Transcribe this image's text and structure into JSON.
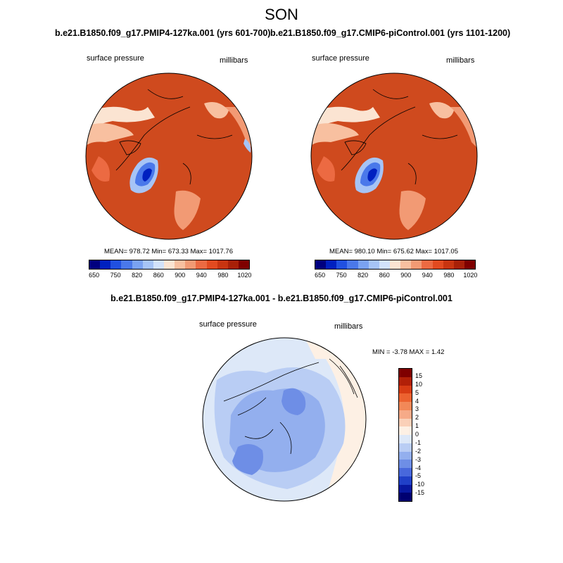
{
  "page_title": "SON",
  "panels": [
    {
      "case_title": "b.e21.B1850.f09_g17.PMIP4-127ka.001 (yrs 601-700)",
      "variable": "surface pressure",
      "units": "millibars",
      "stats": "MEAN= 978.72  Min= 673.33  Max= 1017.76",
      "colorbar_labels": [
        "650",
        "750",
        "820",
        "860",
        "900",
        "940",
        "980",
        "1020"
      ]
    },
    {
      "case_title": "b.e21.B1850.f09_g17.CMIP6-piControl.001 (yrs 1101-1200)",
      "variable": "surface pressure",
      "units": "millibars",
      "stats": "MEAN= 980.10  Min= 675.62  Max= 1017.05",
      "colorbar_labels": [
        "650",
        "750",
        "820",
        "860",
        "900",
        "940",
        "980",
        "1020"
      ]
    }
  ],
  "difference": {
    "title": "b.e21.B1850.f09_g17.PMIP4-127ka.001 - b.e21.B1850.f09_g17.CMIP6-piControl.001",
    "variable": "surface pressure",
    "units": "millibars",
    "stats": "MIN =  -3.78 MAX =   1.42",
    "colorbar_labels": [
      "15",
      "10",
      "5",
      "4",
      "3",
      "2",
      "1",
      "0",
      "-1",
      "-2",
      "-3",
      "-4",
      "-5",
      "-10",
      "-15"
    ]
  },
  "colors": {
    "abs_colorbar": [
      "#00007f",
      "#0020c0",
      "#2050e0",
      "#4a78ea",
      "#7aa2f2",
      "#a6c4f6",
      "#d2e2fa",
      "#fbe4d2",
      "#f8c0a0",
      "#f29a74",
      "#ec6a42",
      "#e24a20",
      "#c83410",
      "#a82008",
      "#7f0000"
    ],
    "diff_colorbar": [
      "#7f0000",
      "#b22008",
      "#d83c14",
      "#ec6230",
      "#f28858",
      "#f6aa88",
      "#fad0b8",
      "#fdf0e4",
      "#dde8f8",
      "#b9cdf4",
      "#93afee",
      "#6e8ee6",
      "#4868dc",
      "#2040c8",
      "#0818a0",
      "#000070"
    ],
    "land_fill": "#cf4a1e",
    "ocean_fill": "#dc5a2a"
  }
}
